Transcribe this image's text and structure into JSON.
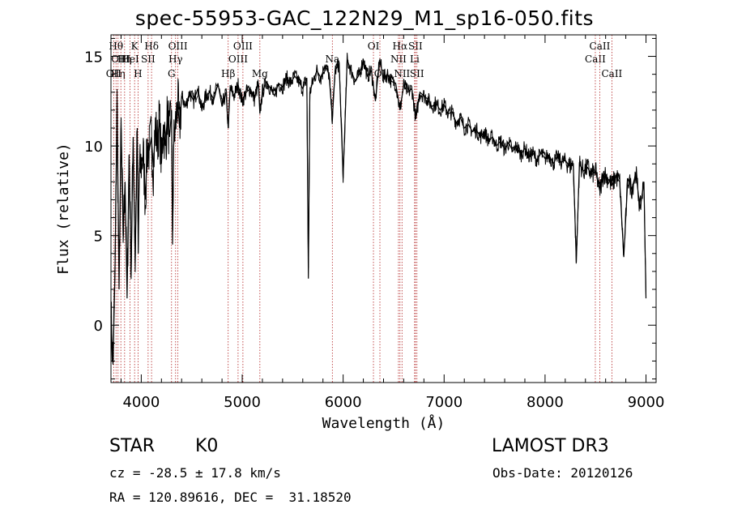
{
  "chart_data": {
    "type": "line",
    "title": "spec-55953-GAC_122N29_M1_sp16-050.fits",
    "xlabel": "Wavelength (Å)",
    "ylabel": "Flux (relative)",
    "xlim": [
      3700,
      9100
    ],
    "ylim": [
      -3.2,
      16.2
    ],
    "xticks": [
      4000,
      5000,
      6000,
      7000,
      8000,
      9000
    ],
    "xtick_labels": [
      "4000",
      "5000",
      "6000",
      "7000",
      "8000",
      "9000"
    ],
    "yticks": [
      0,
      5,
      10,
      15
    ],
    "ytick_labels": [
      "0",
      "5",
      "10",
      "15"
    ],
    "series": [
      {
        "name": "flux",
        "x": [
          3700,
          3720,
          3740,
          3760,
          3780,
          3800,
          3820,
          3840,
          3860,
          3880,
          3900,
          3920,
          3940,
          3960,
          3970,
          3980,
          4000,
          4020,
          4040,
          4060,
          4080,
          4100,
          4120,
          4140,
          4160,
          4180,
          4200,
          4220,
          4240,
          4260,
          4280,
          4300,
          4310,
          4320,
          4340,
          4360,
          4380,
          4400,
          4440,
          4480,
          4520,
          4560,
          4600,
          4640,
          4680,
          4720,
          4760,
          4800,
          4840,
          4861,
          4880,
          4920,
          4960,
          5000,
          5040,
          5080,
          5120,
          5160,
          5175,
          5200,
          5240,
          5280,
          5320,
          5360,
          5400,
          5440,
          5480,
          5520,
          5560,
          5600,
          5640,
          5655,
          5670,
          5700,
          5740,
          5780,
          5820,
          5860,
          5893,
          5920,
          5960,
          6000,
          6040,
          6080,
          6120,
          6160,
          6200,
          6240,
          6280,
          6320,
          6360,
          6400,
          6440,
          6480,
          6520,
          6563,
          6600,
          6640,
          6680,
          6720,
          6760,
          6800,
          6840,
          6880,
          6920,
          6960,
          7000,
          7040,
          7080,
          7120,
          7160,
          7200,
          7240,
          7280,
          7320,
          7360,
          7400,
          7440,
          7480,
          7520,
          7560,
          7600,
          7640,
          7680,
          7720,
          7760,
          7800,
          7840,
          7880,
          7920,
          7960,
          8000,
          8040,
          8080,
          8120,
          8160,
          8200,
          8240,
          8280,
          8310,
          8340,
          8380,
          8420,
          8460,
          8500,
          8542,
          8580,
          8620,
          8662,
          8700,
          8740,
          8780,
          8820,
          8860,
          8900,
          8940,
          8980,
          9000
        ],
        "values": [
          0.5,
          -2.2,
          3.0,
          12.5,
          2.0,
          11.0,
          5.0,
          8.0,
          1.5,
          9.5,
          3.0,
          10.5,
          3.5,
          11.0,
          4.0,
          8.5,
          9.0,
          9.5,
          7.0,
          10.0,
          9.8,
          10.5,
          8.8,
          11.0,
          10.2,
          11.5,
          9.0,
          11.2,
          10.0,
          11.8,
          10.5,
          12.0,
          4.5,
          10.0,
          11.2,
          12.5,
          11.0,
          12.8,
          12.2,
          13.0,
          12.5,
          13.2,
          12.0,
          12.8,
          13.0,
          12.6,
          13.5,
          12.2,
          13.0,
          11.0,
          13.2,
          12.8,
          13.4,
          12.5,
          13.0,
          13.2,
          12.6,
          13.5,
          11.8,
          13.0,
          13.6,
          13.2,
          12.8,
          13.5,
          13.3,
          13.8,
          13.5,
          13.9,
          13.6,
          13.2,
          13.8,
          2.6,
          13.0,
          13.6,
          14.2,
          13.8,
          14.5,
          14.0,
          11.5,
          14.2,
          14.6,
          8.2,
          14.8,
          14.2,
          13.6,
          14.0,
          14.8,
          13.9,
          14.2,
          12.5,
          14.8,
          13.8,
          14.0,
          13.6,
          13.5,
          12.0,
          13.4,
          13.0,
          13.2,
          11.5,
          13.0,
          12.8,
          12.6,
          12.2,
          12.4,
          12.0,
          12.3,
          11.8,
          11.9,
          11.3,
          11.6,
          11.0,
          11.2,
          10.8,
          10.9,
          10.5,
          10.8,
          10.3,
          10.5,
          10.0,
          10.3,
          9.8,
          10.2,
          9.7,
          10.0,
          9.5,
          9.9,
          9.4,
          9.6,
          9.2,
          9.6,
          9.3,
          9.5,
          9.0,
          9.4,
          9.1,
          9.2,
          8.9,
          9.0,
          3.5,
          9.0,
          8.6,
          8.8,
          8.4,
          8.6,
          7.5,
          8.5,
          8.2,
          7.8,
          8.3,
          8.0,
          3.8,
          8.2,
          7.6,
          8.5,
          6.5,
          8.0,
          1.5
        ]
      }
    ],
    "line_markers": [
      {
        "wave": 3750,
        "label": "Hθ",
        "row": 1
      },
      {
        "wave": 3727,
        "label": "OII",
        "row": 3
      },
      {
        "wave": 3770,
        "label": "Hη",
        "row": 3
      },
      {
        "wave": 3798,
        "label": "OIII",
        "row": 2
      },
      {
        "wave": 3835,
        "label": "Hη",
        "row": 2
      },
      {
        "wave": 3889,
        "label": "HeI",
        "row": 2
      },
      {
        "wave": 3934,
        "label": "K",
        "row": 1
      },
      {
        "wave": 3968,
        "label": "H",
        "row": 3
      },
      {
        "wave": 4068,
        "label": "SII",
        "row": 2
      },
      {
        "wave": 4102,
        "label": "Hδ",
        "row": 1
      },
      {
        "wave": 4300,
        "label": "G",
        "row": 3
      },
      {
        "wave": 4340,
        "label": "Hγ",
        "row": 2
      },
      {
        "wave": 4363,
        "label": "OIII",
        "row": 1
      },
      {
        "wave": 4861,
        "label": "Hβ",
        "row": 3
      },
      {
        "wave": 4959,
        "label": "OIII",
        "row": 2
      },
      {
        "wave": 5007,
        "label": "OIII",
        "row": 1
      },
      {
        "wave": 5175,
        "label": "Mg",
        "row": 3
      },
      {
        "wave": 5893,
        "label": "Na",
        "row": 2
      },
      {
        "wave": 6300,
        "label": "OI",
        "row": 1
      },
      {
        "wave": 6364,
        "label": "OI",
        "row": 3
      },
      {
        "wave": 6548,
        "label": "NII",
        "row": 2
      },
      {
        "wave": 6563,
        "label": "Hα",
        "row": 1
      },
      {
        "wave": 6583,
        "label": "NII",
        "row": 3
      },
      {
        "wave": 6708,
        "label": "Li",
        "row": 2
      },
      {
        "wave": 6716,
        "label": "SII",
        "row": 1
      },
      {
        "wave": 6731,
        "label": "SII",
        "row": 3
      },
      {
        "wave": 8498,
        "label": "CaII",
        "row": 2
      },
      {
        "wave": 8542,
        "label": "CaII",
        "row": 1
      },
      {
        "wave": 8662,
        "label": "CaII",
        "row": 3
      }
    ]
  },
  "info": {
    "object_class": "STAR",
    "subclass": "K0",
    "survey": "LAMOST DR3",
    "cz": "cz = -28.5 ± 17.8 km/s",
    "obs_date": "Obs-Date: 20120126",
    "coords": "RA = 120.89616, DEC =  31.18520"
  },
  "colors": {
    "spectrum": "#000000",
    "marker": "#b22222",
    "background": "#ffffff"
  }
}
